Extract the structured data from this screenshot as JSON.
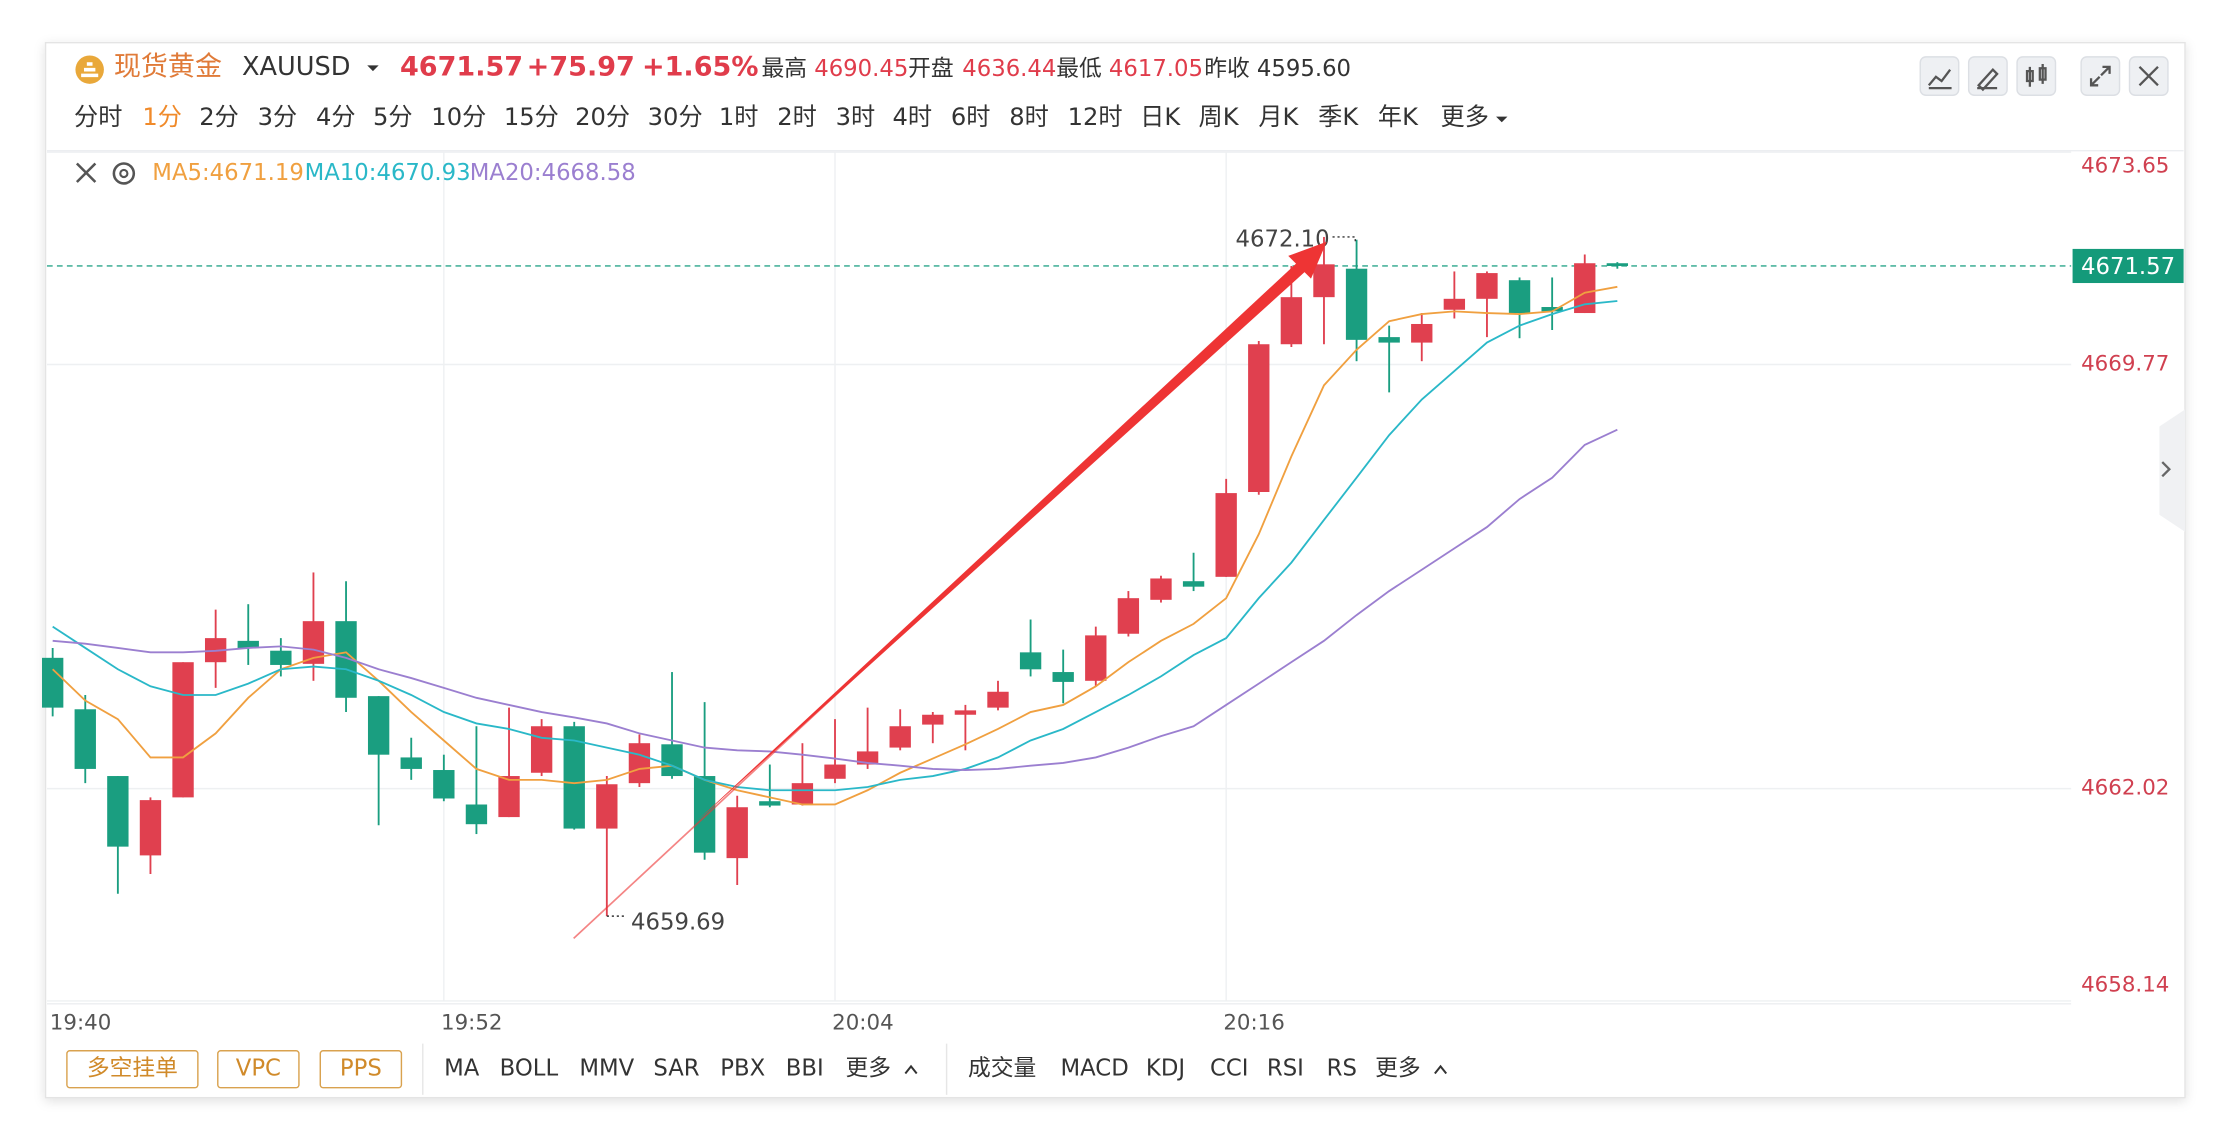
{
  "header": {
    "title": "现货黄金",
    "symbol": "XAUUSD",
    "price": "4671.57",
    "change": "+75.97",
    "change_pct": "+1.65%",
    "stats": [
      {
        "label": "最高",
        "value": "4690.45"
      },
      {
        "label": "开盘",
        "value": "4636.44"
      },
      {
        "label": "最低",
        "value": "4617.05"
      },
      {
        "label": "昨收",
        "value": "4595.60"
      }
    ]
  },
  "timeframes": [
    "分时",
    "1分",
    "2分",
    "3分",
    "4分",
    "5分",
    "10分",
    "15分",
    "20分",
    "30分",
    "1时",
    "2时",
    "3时",
    "4时",
    "6时",
    "8时",
    "12时",
    "日K",
    "周K",
    "月K",
    "季K",
    "年K",
    "更多"
  ],
  "selected_timeframe": 1,
  "bottom_bar": {
    "buttons": [
      "多空挂单",
      "VPC",
      "PPS"
    ],
    "main_indicators": [
      "MA",
      "BOLL",
      "MMV",
      "SAR",
      "PBX",
      "BBI",
      "更多"
    ],
    "sub_indicators": [
      "成交量",
      "MACD",
      "KDJ",
      "CCI",
      "RSI",
      "RS",
      "更多"
    ]
  },
  "chart_data": {
    "type": "candlestick",
    "categories": [
      "19:40",
      null,
      null,
      null,
      null,
      null,
      null,
      null,
      null,
      null,
      null,
      null,
      "19:52",
      null,
      null,
      null,
      null,
      null,
      null,
      null,
      null,
      null,
      null,
      null,
      "20:04",
      null,
      null,
      null,
      null,
      null,
      null,
      null,
      null,
      null,
      null,
      null,
      "20:16",
      null,
      null,
      null,
      null,
      null,
      null,
      null,
      null,
      null,
      null,
      null,
      null
    ],
    "open": [
      4664.41,
      4663.47,
      4662.25,
      4660.8,
      4661.86,
      4664.33,
      4664.72,
      4664.54,
      4664.3,
      4665.08,
      4663.71,
      4662.59,
      4662.36,
      4661.73,
      4661.5,
      4662.31,
      4663.16,
      4661.29,
      4662.12,
      4662.83,
      4662.25,
      4660.75,
      4661.79,
      4661.73,
      4662.2,
      4662.46,
      4662.77,
      4663.19,
      4663.37,
      4663.5,
      4664.51,
      4664.15,
      4663.99,
      4664.85,
      4665.47,
      4665.81,
      4665.89,
      4667.44,
      4670.14,
      4671.0,
      4671.52,
      4670.27,
      4670.17,
      4670.77,
      4670.97,
      4671.31,
      4670.82,
      4670.71,
      4671.62
    ],
    "high": [
      4664.59,
      4663.73,
      4662.25,
      4661.86,
      4664.33,
      4665.29,
      4665.39,
      4664.77,
      4665.97,
      4665.81,
      4663.71,
      4662.95,
      4662.64,
      4663.16,
      4663.5,
      4663.29,
      4663.24,
      4662.25,
      4663.01,
      4664.15,
      4663.6,
      4661.89,
      4662.46,
      4662.85,
      4663.29,
      4663.5,
      4663.47,
      4663.42,
      4663.55,
      4663.99,
      4665.11,
      4664.56,
      4664.98,
      4665.63,
      4665.91,
      4666.33,
      4667.68,
      4670.2,
      4671.57,
      4672.1,
      4672.05,
      4670.48,
      4670.71,
      4671.47,
      4671.47,
      4671.36,
      4671.36,
      4671.78,
      4671.64
    ],
    "low": [
      4663.34,
      4662.12,
      4660.1,
      4660.46,
      4661.86,
      4663.86,
      4664.28,
      4664.07,
      4663.99,
      4663.42,
      4661.35,
      4662.18,
      4661.79,
      4661.19,
      4661.5,
      4662.25,
      4661.27,
      4659.69,
      4662.05,
      4662.2,
      4660.72,
      4660.26,
      4661.68,
      4661.71,
      4662.12,
      4662.38,
      4662.72,
      4662.85,
      4662.72,
      4663.45,
      4664.07,
      4663.58,
      4663.89,
      4664.8,
      4665.42,
      4665.63,
      4665.89,
      4667.39,
      4670.09,
      4670.14,
      4669.83,
      4669.26,
      4669.83,
      4670.61,
      4670.27,
      4670.25,
      4670.4,
      4670.71,
      4671.52
    ],
    "close": [
      4663.5,
      4662.38,
      4660.96,
      4661.81,
      4664.33,
      4664.77,
      4664.59,
      4664.28,
      4665.08,
      4663.68,
      4662.64,
      4662.38,
      4661.84,
      4661.37,
      4662.25,
      4663.16,
      4661.29,
      4662.1,
      4662.85,
      4662.25,
      4660.85,
      4661.68,
      4661.71,
      4662.12,
      4662.46,
      4662.7,
      4663.16,
      4663.37,
      4663.45,
      4663.79,
      4664.2,
      4663.97,
      4664.82,
      4665.5,
      4665.86,
      4665.71,
      4667.42,
      4670.14,
      4671.0,
      4671.6,
      4670.22,
      4670.17,
      4670.51,
      4670.97,
      4671.44,
      4670.71,
      4670.74,
      4671.62,
      4671.57
    ],
    "up_color": "#e0404f",
    "down_color": "#1a9e80",
    "series": [
      {
        "name": "MA5:4671.19",
        "color": "#f0a040",
        "values": [
          4664.2,
          4663.63,
          4663.29,
          4662.59,
          4662.59,
          4663.03,
          4663.68,
          4664.2,
          4664.41,
          4664.51,
          4663.99,
          4663.42,
          4662.9,
          4662.38,
          4662.18,
          4662.18,
          4662.12,
          4662.18,
          4662.38,
          4662.44,
          4662.18,
          4661.99,
          4661.86,
          4661.73,
          4661.73,
          4661.99,
          4662.31,
          4662.57,
          4662.83,
          4663.11,
          4663.42,
          4663.55,
          4663.89,
          4664.33,
          4664.72,
          4665.03,
          4665.5,
          4666.67,
          4668.09,
          4669.39,
          4670.04,
          4670.56,
          4670.69,
          4670.74,
          4670.71,
          4670.69,
          4670.74,
          4671.08,
          4671.19
        ]
      },
      {
        "name": "MA10:4670.93",
        "color": "#2ab8c8",
        "values": [
          4664.98,
          4664.59,
          4664.2,
          4663.89,
          4663.73,
          4663.73,
          4663.94,
          4664.2,
          4664.25,
          4664.2,
          4663.99,
          4663.73,
          4663.42,
          4663.21,
          4663.11,
          4662.95,
          4662.9,
          4662.77,
          4662.64,
          4662.44,
          4662.18,
          4662.05,
          4661.99,
          4661.99,
          4661.99,
          4662.05,
          4662.18,
          4662.25,
          4662.38,
          4662.59,
          4662.9,
          4663.11,
          4663.42,
          4663.73,
          4664.07,
          4664.46,
          4664.77,
          4665.5,
          4666.15,
          4666.93,
          4667.7,
          4668.48,
          4669.13,
          4669.65,
          4670.17,
          4670.48,
          4670.69,
          4670.87,
          4670.93
        ]
      },
      {
        "name": "MA20:4668.58",
        "color": "#9b7fd0",
        "values": [
          4664.72,
          4664.67,
          4664.59,
          4664.51,
          4664.51,
          4664.54,
          4664.59,
          4664.62,
          4664.56,
          4664.41,
          4664.2,
          4664.04,
          4663.86,
          4663.68,
          4663.55,
          4663.42,
          4663.32,
          4663.21,
          4663.03,
          4662.9,
          4662.77,
          4662.72,
          4662.7,
          4662.64,
          4662.57,
          4662.49,
          4662.44,
          4662.38,
          4662.36,
          4662.38,
          4662.44,
          4662.49,
          4662.59,
          4662.77,
          4662.98,
          4663.16,
          4663.55,
          4663.94,
          4664.33,
          4664.72,
          4665.19,
          4665.63,
          4666.02,
          4666.41,
          4666.8,
          4667.31,
          4667.7,
          4668.3,
          4668.58
        ]
      }
    ],
    "annotations": {
      "max": "4672.10",
      "min": "4659.69"
    },
    "ylim": [
      4658.14,
      4673.65
    ],
    "yticks": [
      4658.14,
      4662.02,
      4669.77,
      4673.65
    ],
    "grid": true
  }
}
